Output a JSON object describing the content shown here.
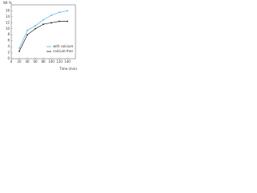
{
  "chart_data": {
    "type": "line",
    "xlabel": "Time (min)",
    "ylabel": "Wt %",
    "x": [
      20,
      40,
      60,
      80,
      100,
      120,
      140
    ],
    "series": [
      {
        "name": "with calcium",
        "color": "#4fb3e6",
        "values": [
          3.5,
          9.5,
          11,
          13,
          14.5,
          15.5,
          16
        ]
      },
      {
        "name": "calcium-free",
        "color": "#222222",
        "values": [
          2.5,
          8,
          10,
          11.5,
          12,
          12.5,
          12.5
        ]
      }
    ],
    "xlim": [
      0,
      160
    ],
    "xticks": [
      0,
      20,
      40,
      60,
      80,
      100,
      120,
      140
    ],
    "ylim": [
      0,
      18
    ],
    "yticks": [
      0,
      2,
      4,
      6,
      8,
      10,
      12,
      14,
      16
    ],
    "legend": "lower-right"
  }
}
